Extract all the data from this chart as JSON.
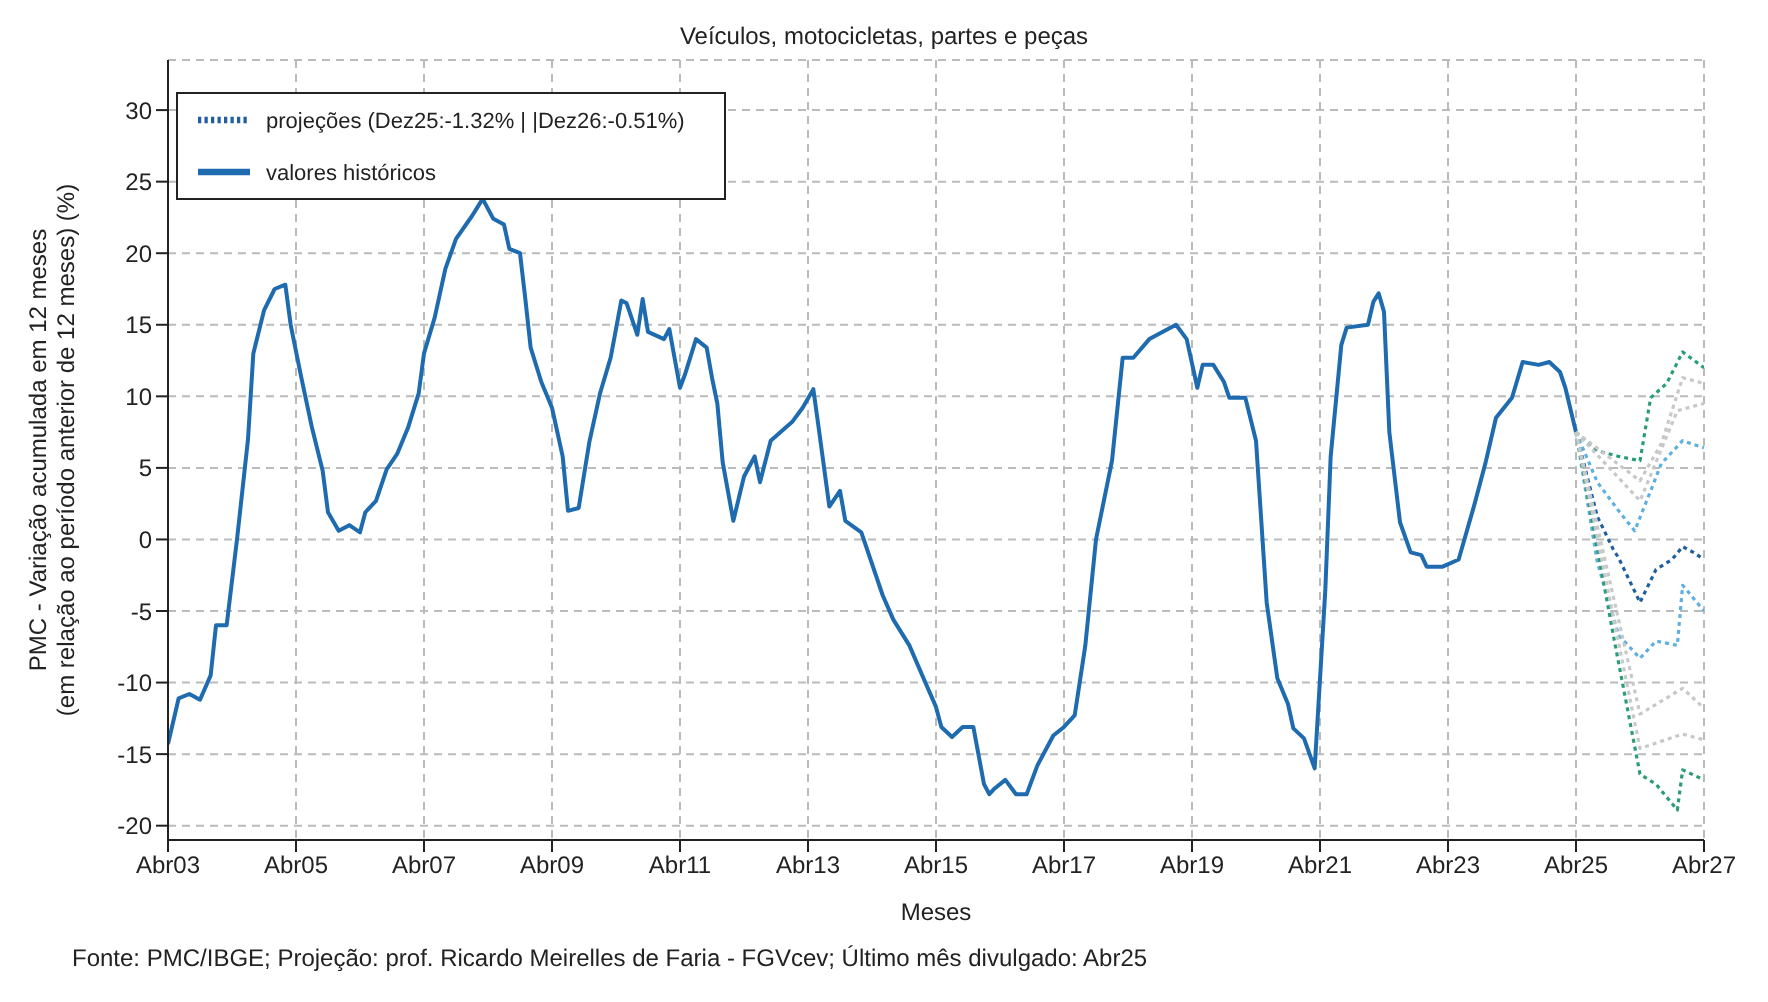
{
  "chart_data": {
    "type": "line",
    "title": "Veículos, motocicletas, partes e peças",
    "xlabel": "Meses",
    "ylabel": "PMC - Variação acumulada em 12 meses\n(em relação ao período anterior de 12 meses) (%)",
    "annotations": [
      "Fonte: PMC/IBGE; Projeção: prof. Ricardo Meirelles de Faria - FGVcev; Último mês divulgado: Abr25"
    ],
    "xlim": [
      "2003-04",
      "2027-04"
    ],
    "xticks": [
      {
        "value": "2003-04",
        "label": "Abr03"
      },
      {
        "value": "2005-04",
        "label": "Abr05"
      },
      {
        "value": "2007-04",
        "label": "Abr07"
      },
      {
        "value": "2009-04",
        "label": "Abr09"
      },
      {
        "value": "2011-04",
        "label": "Abr11"
      },
      {
        "value": "2013-04",
        "label": "Abr13"
      },
      {
        "value": "2015-04",
        "label": "Abr15"
      },
      {
        "value": "2017-04",
        "label": "Abr17"
      },
      {
        "value": "2019-04",
        "label": "Abr19"
      },
      {
        "value": "2021-04",
        "label": "Abr21"
      },
      {
        "value": "2023-04",
        "label": "Abr23"
      },
      {
        "value": "2025-04",
        "label": "Abr25"
      },
      {
        "value": "2027-04",
        "label": "Abr27"
      }
    ],
    "ylim": [
      -21,
      33.5
    ],
    "yticks": [
      -20,
      -15,
      -10,
      -5,
      0,
      5,
      10,
      15,
      20,
      25,
      30
    ],
    "grid": true,
    "legend": "top left",
    "marker": "none",
    "series": [
      {
        "name": "valores históricos",
        "color": "#1f6bb0",
        "line_style": "solid",
        "x": [
          "2003-04",
          "2003-06",
          "2003-08",
          "2003-10",
          "2003-12",
          "2004-01",
          "2004-03",
          "2004-05",
          "2004-07",
          "2004-08",
          "2004-10",
          "2004-12",
          "2005-02",
          "2005-03",
          "2005-05",
          "2005-07",
          "2005-09",
          "2005-10",
          "2005-12",
          "2006-02",
          "2006-04",
          "2006-05",
          "2006-07",
          "2006-09",
          "2006-11",
          "2007-01",
          "2007-03",
          "2007-04",
          "2007-06",
          "2007-08",
          "2007-10",
          "2008-01",
          "2008-03",
          "2008-05",
          "2008-07",
          "2008-08",
          "2008-10",
          "2008-11",
          "2008-12",
          "2009-02",
          "2009-04",
          "2009-06",
          "2009-07",
          "2009-09",
          "2009-11",
          "2010-01",
          "2010-03",
          "2010-05",
          "2010-06",
          "2010-08",
          "2010-09",
          "2010-10",
          "2011-01",
          "2011-02",
          "2011-04",
          "2011-05",
          "2011-07",
          "2011-09",
          "2011-10",
          "2011-11",
          "2011-12",
          "2012-02",
          "2012-04",
          "2012-06",
          "2012-07",
          "2012-09",
          "2013-01",
          "2013-03",
          "2013-05",
          "2013-06",
          "2013-08",
          "2013-10",
          "2013-11",
          "2014-02",
          "2014-06",
          "2014-08",
          "2014-11",
          "2015-02",
          "2015-04",
          "2015-05",
          "2015-07",
          "2015-09",
          "2015-11",
          "2016-01",
          "2016-02",
          "2016-03",
          "2016-05",
          "2016-07",
          "2016-09",
          "2016-11",
          "2017-02",
          "2017-04",
          "2017-06",
          "2017-08",
          "2017-10",
          "2018-01",
          "2018-03",
          "2018-05",
          "2018-08",
          "2019-01",
          "2019-03",
          "2019-05",
          "2019-06",
          "2019-08",
          "2019-10",
          "2019-11",
          "2020-02",
          "2020-04",
          "2020-06",
          "2020-08",
          "2020-10",
          "2020-11",
          "2021-01",
          "2021-03",
          "2021-05",
          "2021-06",
          "2021-08",
          "2021-09",
          "2022-01",
          "2022-02",
          "2022-03",
          "2022-04",
          "2022-05",
          "2022-07",
          "2022-09",
          "2022-11",
          "2022-12",
          "2023-03",
          "2023-06",
          "2023-09",
          "2023-11",
          "2024-01",
          "2024-04",
          "2024-06",
          "2024-09",
          "2024-11",
          "2025-01",
          "2025-02",
          "2025-04"
        ],
        "values": [
          -14.3,
          -11.1,
          -10.8,
          -11.2,
          -9.5,
          -6,
          -6,
          0.2,
          7,
          13,
          16,
          17.5,
          17.8,
          15,
          11.3,
          7.8,
          4.8,
          1.9,
          0.6,
          1,
          0.5,
          1.9,
          2.7,
          4.9,
          6,
          7.8,
          10.2,
          13,
          15.5,
          18.9,
          21,
          22.6,
          23.8,
          22.4,
          22,
          20.3,
          20,
          16.8,
          13.4,
          11,
          9.2,
          5.8,
          2,
          2.2,
          6.8,
          10.2,
          12.7,
          16.7,
          16.5,
          14.3,
          16.8,
          14.5,
          14,
          14.7,
          10.6,
          11.6,
          14,
          13.4,
          11.3,
          9.5,
          5.4,
          1.3,
          4.4,
          5.8,
          4,
          6.9,
          8.2,
          9.2,
          10.5,
          7.8,
          2.3,
          3.4,
          1.3,
          0.5,
          -3.9,
          -5.6,
          -7.4,
          -10,
          -11.7,
          -13.1,
          -13.8,
          -13.1,
          -13.1,
          -17.1,
          -17.8,
          -17.4,
          -16.8,
          -17.8,
          -17.8,
          -15.8,
          -13.7,
          -13.1,
          -12.3,
          -7.4,
          0,
          5.5,
          12.7,
          12.7,
          14,
          15,
          14,
          10.6,
          12.2,
          12.2,
          11,
          9.9,
          9.9,
          6.9,
          -4.4,
          -9.7,
          -11.5,
          -13.2,
          -13.9,
          -16,
          -3.5,
          5.8,
          13.6,
          14.8,
          15,
          16.6,
          17.2,
          15.9,
          7.5,
          1.2,
          -0.9,
          -1.1,
          -1.9,
          -1.9,
          -1.4,
          2.5,
          5.3,
          8.5,
          9.9,
          12.4,
          12.2,
          12.4,
          11.7,
          10.6,
          7.5
        ]
      },
      {
        "name": "projeções (Dez25:-1.32% | |Dez26:-0.51%)",
        "color": "#1f5fa0",
        "line_style": "dotted",
        "x": [
          "2025-04",
          "2025-08",
          "2025-11",
          "2025-12",
          "2026-04",
          "2026-07",
          "2026-10",
          "2026-12",
          "2027-02",
          "2027-04"
        ],
        "values": [
          7.5,
          1.6,
          -0.7,
          -1.3,
          -4.4,
          -2.1,
          -1.4,
          -0.5,
          -0.9,
          -1.4
        ]
      },
      {
        "color": "#5fb0e0",
        "line_style": "dotted",
        "x": [
          "2025-04",
          "2025-08",
          "2025-12",
          "2026-03",
          "2026-06",
          "2026-08",
          "2026-12",
          "2027-04"
        ],
        "values": [
          7.5,
          4,
          2,
          0.6,
          3.4,
          5.3,
          6.9,
          6.4
        ]
      },
      {
        "color": "#5fb0e0",
        "line_style": "dotted",
        "x": [
          "2025-04",
          "2025-08",
          "2025-12",
          "2026-04",
          "2026-07",
          "2026-11",
          "2026-12",
          "2027-04"
        ],
        "values": [
          7.5,
          -1.6,
          -6.7,
          -8.3,
          -7.1,
          -7.4,
          -3.2,
          -5
        ]
      },
      {
        "color": "#2a9d78",
        "line_style": "dotted",
        "x": [
          "2025-04",
          "2025-08",
          "2025-12",
          "2026-04",
          "2026-06",
          "2026-09",
          "2026-12",
          "2027-04"
        ],
        "values": [
          7.5,
          6.2,
          5.8,
          5.5,
          9.9,
          10.9,
          13.1,
          12
        ]
      },
      {
        "color": "#2a9d78",
        "line_style": "dotted",
        "x": [
          "2025-04",
          "2025-11",
          "2026-04",
          "2026-07",
          "2026-11",
          "2026-12",
          "2027-04"
        ],
        "values": [
          7.5,
          -6.7,
          -16.4,
          -17.1,
          -18.9,
          -16.1,
          -16.8
        ]
      },
      {
        "color": "#c8c8c8",
        "line_style": "dotted",
        "x": [
          "2025-04",
          "2026-04",
          "2026-08",
          "2026-12",
          "2027-04"
        ],
        "values": [
          7.5,
          4.1,
          6.7,
          11.3,
          10.9
        ]
      },
      {
        "color": "#c8c8c8",
        "line_style": "dotted",
        "x": [
          "2025-04",
          "2026-04",
          "2026-11",
          "2027-04"
        ],
        "values": [
          7.5,
          2.7,
          9,
          9.5
        ]
      },
      {
        "color": "#c8c8c8",
        "line_style": "dotted",
        "x": [
          "2025-04",
          "2026-04",
          "2026-12",
          "2027-04"
        ],
        "values": [
          7.5,
          -12.2,
          -10.4,
          -11.8
        ]
      },
      {
        "color": "#c8c8c8",
        "line_style": "dotted",
        "x": [
          "2025-04",
          "2026-04",
          "2026-12",
          "2027-04"
        ],
        "values": [
          7.5,
          -14.6,
          -13.6,
          -14
        ]
      }
    ]
  }
}
